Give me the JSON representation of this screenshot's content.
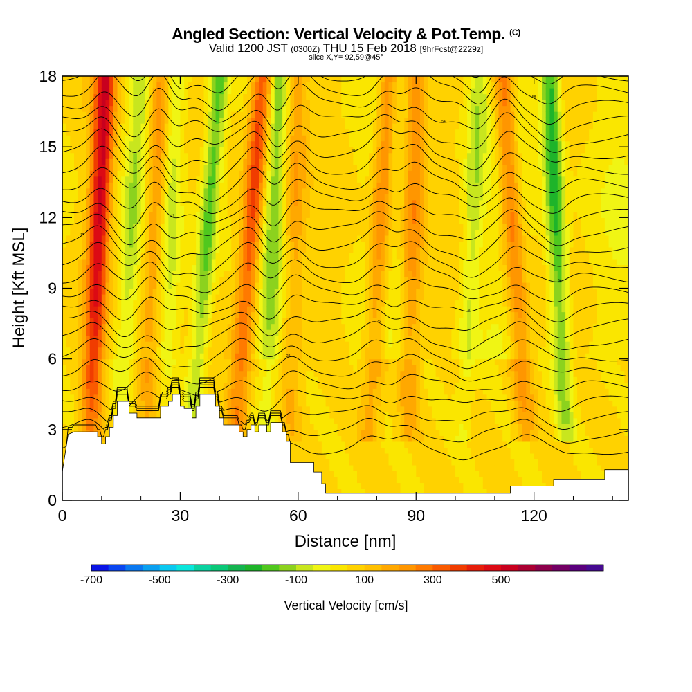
{
  "header": {
    "title": "Angled Section: Vertical Velocity & Pot.Temp.",
    "copyright_mark": "(C)",
    "valid_prefix": "Valid 1200 JST",
    "valid_utc": "(0300Z)",
    "valid_date": "THU 15 Feb 2018",
    "forecast_info": "[9hrFcst@2229z]",
    "slice_info": "slice X,Y= 92,59@45°"
  },
  "chart_data": {
    "type": "heatmap",
    "title": "Angled Section: Vertical Velocity & Pot.Temp.",
    "xlabel": "Distance [nm]",
    "ylabel": "Height [Kft MSL]",
    "xlim": [
      0,
      144
    ],
    "ylim": [
      0,
      18
    ],
    "x_ticks": [
      "0",
      "30",
      "60",
      "90",
      "120"
    ],
    "y_ticks": [
      "0",
      "3",
      "6",
      "9",
      "12",
      "15",
      "18"
    ],
    "velocity_structures": [
      {
        "x_low": 7,
        "x_high": 11,
        "kind": "updraft",
        "peak": 450
      },
      {
        "x_low": 14,
        "x_high": 20,
        "kind": "downdraft",
        "peak": -120
      },
      {
        "x_low": 21,
        "x_high": 25,
        "kind": "updraft",
        "peak": 200
      },
      {
        "x_low": 26,
        "x_high": 29,
        "kind": "downdraft",
        "peak": -100
      },
      {
        "x_low": 33,
        "x_high": 40,
        "kind": "downdraft",
        "peak": -250
      },
      {
        "x_low": 44,
        "x_high": 51,
        "kind": "updraft",
        "peak": 350
      },
      {
        "x_low": 52,
        "x_high": 55,
        "kind": "downdraft",
        "peak": -150
      },
      {
        "x_low": 58,
        "x_high": 60,
        "kind": "updraft",
        "peak": 150
      },
      {
        "x_low": 78,
        "x_high": 83,
        "kind": "updraft",
        "peak": 220
      },
      {
        "x_low": 88,
        "x_high": 90,
        "kind": "updraft",
        "peak": 200
      },
      {
        "x_low": 102,
        "x_high": 106,
        "kind": "downdraft",
        "peak": -130
      },
      {
        "x_low": 118,
        "x_high": 112,
        "kind": "updraft",
        "peak": 250
      },
      {
        "x_low": 128,
        "x_high": 124,
        "kind": "downdraft",
        "peak": -300
      }
    ],
    "terrain_kft": [
      [
        0,
        1.2
      ],
      [
        1.5,
        2.8
      ],
      [
        3,
        2.9
      ],
      [
        9,
        2.9
      ],
      [
        9,
        2.7
      ],
      [
        10,
        2.7
      ],
      [
        10,
        2.4
      ],
      [
        11,
        2.4
      ],
      [
        11,
        2.7
      ],
      [
        12,
        2.7
      ],
      [
        12,
        3.1
      ],
      [
        13,
        3.1
      ],
      [
        13,
        3.6
      ],
      [
        14,
        3.6
      ],
      [
        14,
        4.2
      ],
      [
        17,
        4.2
      ],
      [
        17,
        3.7
      ],
      [
        19,
        3.7
      ],
      [
        19,
        3.5
      ],
      [
        25,
        3.5
      ],
      [
        25,
        4.0
      ],
      [
        27,
        4.0
      ],
      [
        27,
        4.2
      ],
      [
        28,
        4.2
      ],
      [
        28,
        4.5
      ],
      [
        30,
        4.5
      ],
      [
        30,
        4.0
      ],
      [
        31,
        4.0
      ],
      [
        31,
        3.9
      ],
      [
        33,
        3.9
      ],
      [
        33,
        3.5
      ],
      [
        34,
        3.5
      ],
      [
        34,
        4.0
      ],
      [
        35,
        4.0
      ],
      [
        35,
        4.5
      ],
      [
        39,
        4.5
      ],
      [
        39,
        4.0
      ],
      [
        40,
        4.0
      ],
      [
        40,
        3.5
      ],
      [
        41,
        3.5
      ],
      [
        41,
        3.2
      ],
      [
        45,
        3.2
      ],
      [
        45,
        2.9
      ],
      [
        46,
        2.9
      ],
      [
        46,
        2.7
      ],
      [
        47,
        2.7
      ],
      [
        47,
        3.0
      ],
      [
        48,
        3.0
      ],
      [
        48,
        3.2
      ],
      [
        49,
        3.2
      ],
      [
        49,
        2.9
      ],
      [
        50,
        2.9
      ],
      [
        50,
        3.2
      ],
      [
        52,
        3.2
      ],
      [
        52,
        2.9
      ],
      [
        53,
        2.9
      ],
      [
        53,
        3.3
      ],
      [
        56,
        3.3
      ],
      [
        56,
        2.9
      ],
      [
        57,
        2.9
      ],
      [
        57,
        2.5
      ],
      [
        58,
        2.5
      ],
      [
        58,
        1.6
      ],
      [
        64,
        1.6
      ],
      [
        64,
        1.2
      ],
      [
        66,
        1.2
      ],
      [
        66,
        0.7
      ],
      [
        67,
        0.7
      ],
      [
        67,
        0.3
      ],
      [
        114,
        0.3
      ],
      [
        114,
        0.6
      ],
      [
        125,
        0.6
      ],
      [
        125,
        0.9
      ],
      [
        138,
        0.9
      ],
      [
        138,
        1.3
      ],
      [
        144,
        1.3
      ]
    ],
    "isentrope_labels": [
      "14",
      "18",
      "22",
      "26",
      "30",
      "34",
      "38",
      "42",
      "46",
      "50",
      "54",
      "58",
      "62",
      "66",
      "70"
    ],
    "contour_count": 26,
    "colorbar": {
      "title": "Vertical Velocity [cm/s]",
      "tick_labels": [
        "-700",
        "-500",
        "-300",
        "-100",
        "100",
        "300",
        "500"
      ],
      "colors": [
        "#0a14e6",
        "#0a46f0",
        "#0a78f0",
        "#0aa0f0",
        "#0ac8f0",
        "#0ae6dc",
        "#0ad2a0",
        "#0ac878",
        "#14b450",
        "#1eb42a",
        "#50c81e",
        "#8cd21e",
        "#c8e61e",
        "#f0f514",
        "#fae600",
        "#ffd200",
        "#ffc000",
        "#ffa800",
        "#ff9600",
        "#ff7a00",
        "#fa5a00",
        "#f03c00",
        "#e61e0a",
        "#dc0a14",
        "#c8001e",
        "#aa0032",
        "#8c004b",
        "#730064",
        "#5a007d",
        "#460a91"
      ]
    }
  }
}
